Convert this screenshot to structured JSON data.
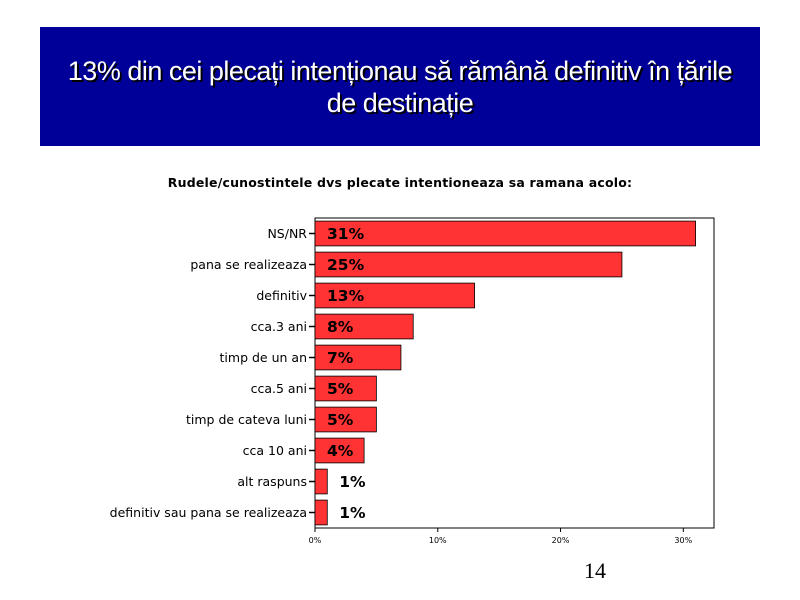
{
  "slide": {
    "title": "13% din cei plecați intenționau să rămână definitiv în țările de destinație",
    "page_number": "14"
  },
  "colors": {
    "banner": "#000099",
    "bar": "#ff3333",
    "bar_stroke": "#000000"
  },
  "chart_data": {
    "type": "bar",
    "orientation": "horizontal",
    "title": "Rudele/cunostintele dvs plecate intentioneaza sa ramana acolo:",
    "xlabel": "",
    "ylabel": "",
    "categories": [
      "NS/NR",
      "pana se realizeaza",
      "definitiv",
      "cca.3 ani",
      "timp de un an",
      "cca.5 ani",
      "timp de cateva luni",
      "cca 10 ani",
      "alt raspuns",
      "definitiv sau pana se realizeaza"
    ],
    "values": [
      31,
      25,
      13,
      8,
      7,
      5,
      5,
      4,
      1,
      1
    ],
    "data_labels": [
      "31%",
      "25%",
      "13%",
      "8%",
      "7%",
      "5%",
      "5%",
      "4%",
      "1%",
      "1%"
    ],
    "xlim": [
      0,
      32.5
    ],
    "xticks": [
      0,
      10,
      20,
      30
    ],
    "xtick_labels": [
      "0%",
      "10%",
      "20%",
      "30%"
    ],
    "grid": false,
    "legend": false
  }
}
